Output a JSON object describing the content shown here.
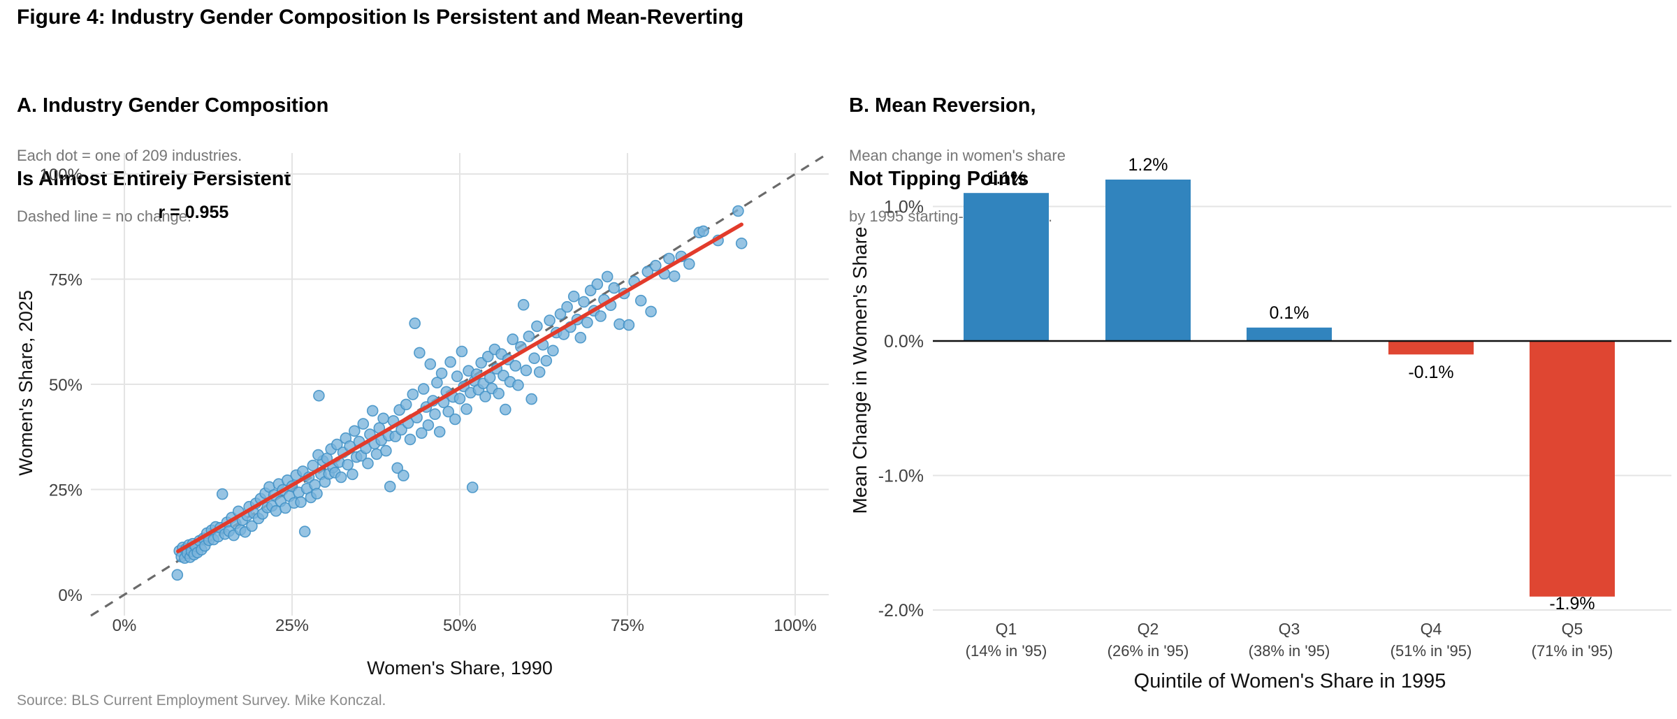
{
  "figure": {
    "title": "Figure 4: Industry Gender Composition Is Persistent and Mean-Reverting",
    "source": "Source: BLS Current Employment Survey. Mike Konczal."
  },
  "panel_a": {
    "title_line1": "A. Industry Gender Composition",
    "title_line2": "Is Almost Entirely Persistent",
    "subtitle_line1": "Each dot = one of 209 industries.",
    "subtitle_line2": "Dashed line = no change.",
    "annotation": "r = 0.955",
    "xlabel": "Women's Share, 1990",
    "ylabel": "Women's Share, 2025"
  },
  "panel_b": {
    "title_line1": "B. Mean Reversion,",
    "title_line2": "Not Tipping Points",
    "subtitle_line1": "Mean change in women's share",
    "subtitle_line2": "by 1995 starting-level quintile.",
    "xlabel": "Quintile of Women's Share in 1995",
    "ylabel": "Mean Change in Women's Share"
  },
  "colors": {
    "dot_fill": "#7ab3db",
    "dot_stroke": "#4292c6",
    "trend": "#e23b2b",
    "identity": "#6a6a6a",
    "grid": "#e4e4e4",
    "bar_positive": "#3184be",
    "bar_negative": "#df4632",
    "zero_line": "#111111",
    "tick_text": "#404040",
    "axis_title_text": "#111111",
    "annotation_text": "#000000"
  },
  "chart_data": [
    {
      "type": "scatter",
      "title": "A. Industry Gender Composition Is Almost Entirely Persistent",
      "xlabel": "Women's Share, 1990",
      "ylabel": "Women's Share, 2025",
      "xlim": [
        -5,
        105
      ],
      "ylim": [
        -5,
        105
      ],
      "grid": true,
      "x_ticks": [
        {
          "v": 0,
          "label": "0%"
        },
        {
          "v": 25,
          "label": "25%"
        },
        {
          "v": 50,
          "label": "50%"
        },
        {
          "v": 75,
          "label": "75%"
        },
        {
          "v": 100,
          "label": "100%"
        }
      ],
      "y_ticks": [
        {
          "v": 0,
          "label": "0%"
        },
        {
          "v": 25,
          "label": "25%"
        },
        {
          "v": 50,
          "label": "50%"
        },
        {
          "v": 75,
          "label": "75%"
        },
        {
          "v": 100,
          "label": "100%"
        }
      ],
      "annotation": {
        "text": "r = 0.955",
        "x": 10.3,
        "y": 89.5
      },
      "identity_line": {
        "x1": -5,
        "y1": -5,
        "x2": 105,
        "y2": 105,
        "style": "dashed"
      },
      "trend_line": {
        "x1": 8,
        "y1": 10.3,
        "x2": 92,
        "y2": 88
      },
      "n_points": 209,
      "points": [
        [
          7.9,
          4.7
        ],
        [
          8.2,
          10.4
        ],
        [
          8.5,
          9.0
        ],
        [
          8.7,
          11.2
        ],
        [
          9.0,
          8.7
        ],
        [
          9.2,
          10.9
        ],
        [
          9.4,
          9.8
        ],
        [
          9.6,
          11.8
        ],
        [
          9.8,
          8.9
        ],
        [
          10.0,
          10.3
        ],
        [
          10.2,
          12.1
        ],
        [
          10.4,
          9.5
        ],
        [
          10.6,
          11.5
        ],
        [
          10.9,
          10.0
        ],
        [
          11.2,
          12.8
        ],
        [
          11.5,
          10.7
        ],
        [
          11.8,
          13.4
        ],
        [
          12.0,
          11.6
        ],
        [
          12.3,
          14.6
        ],
        [
          12.6,
          12.9
        ],
        [
          13.0,
          15.3
        ],
        [
          13.3,
          13.1
        ],
        [
          13.6,
          16.1
        ],
        [
          14.0,
          13.8
        ],
        [
          14.3,
          15.9
        ],
        [
          14.6,
          23.9
        ],
        [
          15.0,
          14.4
        ],
        [
          15.3,
          17.2
        ],
        [
          15.6,
          15.1
        ],
        [
          16.0,
          18.3
        ],
        [
          16.3,
          14.1
        ],
        [
          16.6,
          16.9
        ],
        [
          17.0,
          19.8
        ],
        [
          17.3,
          15.4
        ],
        [
          17.6,
          17.7
        ],
        [
          18.0,
          14.9
        ],
        [
          18.3,
          18.8
        ],
        [
          18.6,
          20.9
        ],
        [
          19.0,
          16.3
        ],
        [
          19.3,
          19.4
        ],
        [
          19.6,
          21.7
        ],
        [
          20.0,
          18.1
        ],
        [
          20.3,
          22.8
        ],
        [
          20.6,
          19.2
        ],
        [
          21.0,
          24.1
        ],
        [
          21.3,
          20.7
        ],
        [
          21.6,
          25.6
        ],
        [
          22.0,
          21.1
        ],
        [
          22.3,
          23.7
        ],
        [
          22.6,
          19.9
        ],
        [
          23.0,
          26.3
        ],
        [
          23.3,
          22.2
        ],
        [
          23.6,
          24.9
        ],
        [
          24.0,
          20.6
        ],
        [
          24.3,
          27.2
        ],
        [
          24.6,
          23.4
        ],
        [
          25.0,
          25.8
        ],
        [
          25.3,
          21.8
        ],
        [
          25.6,
          28.4
        ],
        [
          26.0,
          24.3
        ],
        [
          26.3,
          22.0
        ],
        [
          26.6,
          29.3
        ],
        [
          26.9,
          15.0
        ],
        [
          27.2,
          25.2
        ],
        [
          27.5,
          27.9
        ],
        [
          27.8,
          23.1
        ],
        [
          28.1,
          30.7
        ],
        [
          28.4,
          26.1
        ],
        [
          28.7,
          24.0
        ],
        [
          29.0,
          47.3
        ],
        [
          29.3,
          28.6
        ],
        [
          29.6,
          31.8
        ],
        [
          29.9,
          26.8
        ],
        [
          28.9,
          33.2
        ],
        [
          30.2,
          32.4
        ],
        [
          30.5,
          28.7
        ],
        [
          30.8,
          34.6
        ],
        [
          31.1,
          30.2
        ],
        [
          31.4,
          29.0
        ],
        [
          31.7,
          35.7
        ],
        [
          32.0,
          31.5
        ],
        [
          32.3,
          27.9
        ],
        [
          32.6,
          33.8
        ],
        [
          33.0,
          37.2
        ],
        [
          33.3,
          30.9
        ],
        [
          33.6,
          35.3
        ],
        [
          34.0,
          28.6
        ],
        [
          34.3,
          38.9
        ],
        [
          34.6,
          32.7
        ],
        [
          35.0,
          36.4
        ],
        [
          35.3,
          33.0
        ],
        [
          35.6,
          40.6
        ],
        [
          36.0,
          34.8
        ],
        [
          36.3,
          31.2
        ],
        [
          36.6,
          38.1
        ],
        [
          37.0,
          43.7
        ],
        [
          37.3,
          35.9
        ],
        [
          37.6,
          33.4
        ],
        [
          38.0,
          39.6
        ],
        [
          38.3,
          36.7
        ],
        [
          38.6,
          41.9
        ],
        [
          39.0,
          34.2
        ],
        [
          39.4,
          37.8
        ],
        [
          39.6,
          25.7
        ],
        [
          40.1,
          41.3
        ],
        [
          40.4,
          37.6
        ],
        [
          40.7,
          30.1
        ],
        [
          41.0,
          43.9
        ],
        [
          41.3,
          39.2
        ],
        [
          41.6,
          28.3
        ],
        [
          42.0,
          45.2
        ],
        [
          42.3,
          40.8
        ],
        [
          42.6,
          36.9
        ],
        [
          43.0,
          47.6
        ],
        [
          43.3,
          64.5
        ],
        [
          43.6,
          42.1
        ],
        [
          44.0,
          57.5
        ],
        [
          44.3,
          38.4
        ],
        [
          44.6,
          48.9
        ],
        [
          45.0,
          44.6
        ],
        [
          45.3,
          40.3
        ],
        [
          45.6,
          54.8
        ],
        [
          46.0,
          46.1
        ],
        [
          46.3,
          42.9
        ],
        [
          46.6,
          50.4
        ],
        [
          47.0,
          38.7
        ],
        [
          47.3,
          52.6
        ],
        [
          47.6,
          45.7
        ],
        [
          48.0,
          48.2
        ],
        [
          48.3,
          43.5
        ],
        [
          48.6,
          55.3
        ],
        [
          49.0,
          47.0
        ],
        [
          49.3,
          41.7
        ],
        [
          49.6,
          51.9
        ],
        [
          50.0,
          46.6
        ],
        [
          50.3,
          57.8
        ],
        [
          50.6,
          49.5
        ],
        [
          51.0,
          44.1
        ],
        [
          51.3,
          53.2
        ],
        [
          51.6,
          48.0
        ],
        [
          51.9,
          25.5
        ],
        [
          52.2,
          50.8
        ],
        [
          52.5,
          52.4
        ],
        [
          52.8,
          48.7
        ],
        [
          53.2,
          55.1
        ],
        [
          53.5,
          50.2
        ],
        [
          53.8,
          47.1
        ],
        [
          54.2,
          56.6
        ],
        [
          54.5,
          51.6
        ],
        [
          54.8,
          49.0
        ],
        [
          55.2,
          58.3
        ],
        [
          55.5,
          53.7
        ],
        [
          55.8,
          47.8
        ],
        [
          56.2,
          57.2
        ],
        [
          56.5,
          52.1
        ],
        [
          56.8,
          44.0
        ],
        [
          57.2,
          55.9
        ],
        [
          57.5,
          50.6
        ],
        [
          57.9,
          60.7
        ],
        [
          58.3,
          54.4
        ],
        [
          58.7,
          49.8
        ],
        [
          59.1,
          58.9
        ],
        [
          59.5,
          68.9
        ],
        [
          59.9,
          53.3
        ],
        [
          60.3,
          61.4
        ],
        [
          60.7,
          46.5
        ],
        [
          61.1,
          56.2
        ],
        [
          61.5,
          63.8
        ],
        [
          61.9,
          52.9
        ],
        [
          62.4,
          59.4
        ],
        [
          62.9,
          55.6
        ],
        [
          63.4,
          65.2
        ],
        [
          63.9,
          58.0
        ],
        [
          64.4,
          62.3
        ],
        [
          65.0,
          66.7
        ],
        [
          65.5,
          61.9
        ],
        [
          66.0,
          68.4
        ],
        [
          66.5,
          63.6
        ],
        [
          67.0,
          70.9
        ],
        [
          67.5,
          65.4
        ],
        [
          68.0,
          61.1
        ],
        [
          68.5,
          69.6
        ],
        [
          69.0,
          64.7
        ],
        [
          69.5,
          72.3
        ],
        [
          70.0,
          67.5
        ],
        [
          70.5,
          73.8
        ],
        [
          71.0,
          66.2
        ],
        [
          71.5,
          70.1
        ],
        [
          72.0,
          75.6
        ],
        [
          72.5,
          68.8
        ],
        [
          73.0,
          72.9
        ],
        [
          73.8,
          64.3
        ],
        [
          74.5,
          71.6
        ],
        [
          75.2,
          64.1
        ],
        [
          76.0,
          74.4
        ],
        [
          77.0,
          69.9
        ],
        [
          78.0,
          76.8
        ],
        [
          78.5,
          67.3
        ],
        [
          79.2,
          78.2
        ],
        [
          80.5,
          76.3
        ],
        [
          81.2,
          79.9
        ],
        [
          82.0,
          75.7
        ],
        [
          83.0,
          80.4
        ],
        [
          84.2,
          78.6
        ],
        [
          85.7,
          86.1
        ],
        [
          86.3,
          86.4
        ],
        [
          88.5,
          84.2
        ],
        [
          91.5,
          91.2
        ],
        [
          92.0,
          83.5
        ]
      ]
    },
    {
      "type": "bar",
      "title": "B. Mean Reversion, Not Tipping Points",
      "xlabel": "Quintile of Women's Share in 1995",
      "ylabel": "Mean Change in Women's Share",
      "categories": [
        "Q1",
        "Q2",
        "Q3",
        "Q4",
        "Q5"
      ],
      "category_sublabels": [
        "(14% in '95)",
        "(26% in '95)",
        "(38% in '95)",
        "(51% in '95)",
        "(71% in '95)"
      ],
      "values": [
        1.1,
        1.2,
        0.1,
        -0.1,
        -1.9
      ],
      "value_labels": [
        "1.1%",
        "1.2%",
        "0.1%",
        "-0.1%",
        "-1.9%"
      ],
      "ylim": [
        -2.1,
        1.4
      ],
      "grid": true,
      "legend": "none",
      "y_ticks": [
        {
          "v": 1,
          "label": "1.0%"
        },
        {
          "v": 0,
          "label": "0.0%"
        },
        {
          "v": -1,
          "label": "-1.0%"
        },
        {
          "v": -2,
          "label": "-2.0%"
        }
      ]
    }
  ]
}
